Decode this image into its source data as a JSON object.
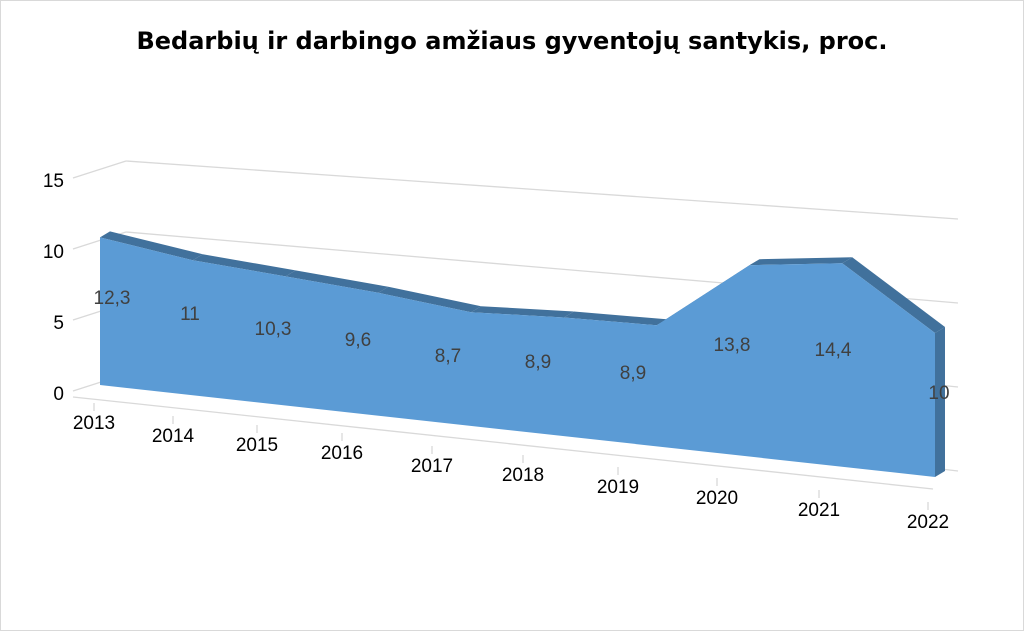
{
  "chart_data": {
    "type": "area",
    "title": "Bedarbių ir darbingo amžiaus gyventojų santykis, proc.",
    "categories": [
      "2013",
      "2014",
      "2015",
      "2016",
      "2017",
      "2018",
      "2019",
      "2020",
      "2021",
      "2022"
    ],
    "values": [
      12.3,
      11,
      10.3,
      9.6,
      8.7,
      8.9,
      8.9,
      13.8,
      14.4,
      10
    ],
    "data_labels": [
      "12,3",
      "11",
      "10,3",
      "9,6",
      "8,7",
      "8,9",
      "8,9",
      "13,8",
      "14,4",
      "10"
    ],
    "y_ticks": [
      "0",
      "5",
      "10",
      "15"
    ],
    "ylim": [
      0,
      15
    ],
    "grid": true,
    "legend": "none",
    "series_color": "#5b9bd5",
    "side_color": "#41719c"
  }
}
